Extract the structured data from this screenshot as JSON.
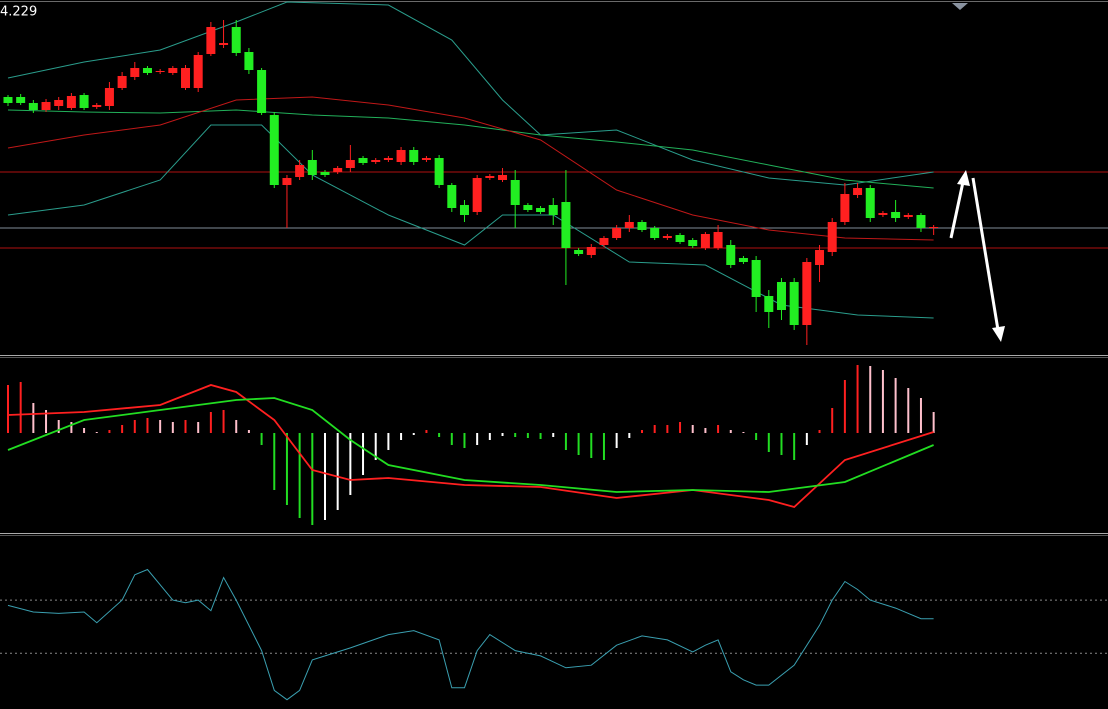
{
  "chart_data": [
    {
      "type": "candlestick",
      "price_label": "4.229",
      "xlim": [
        -0.63,
        86.75
      ],
      "ylim": [
        4.0,
        4.355
      ],
      "up_color": "#ff2020",
      "down_color": "#22ee22",
      "open": [
        4.258,
        4.258,
        4.252,
        4.245,
        4.249,
        4.247,
        4.26,
        4.248,
        4.249,
        4.267,
        4.278,
        4.287,
        4.283,
        4.282,
        4.267,
        4.267,
        4.301,
        4.31,
        4.328,
        4.303,
        4.285,
        4.24,
        4.17,
        4.178,
        4.195,
        4.183,
        4.183,
        4.187,
        4.197,
        4.193,
        4.195,
        4.193,
        4.205,
        4.195,
        4.197,
        4.17,
        4.15,
        4.143,
        4.177,
        4.175,
        4.175,
        4.15,
        4.147,
        4.15,
        4.153,
        4.105,
        4.1,
        4.11,
        4.117,
        4.127,
        4.133,
        4.127,
        4.117,
        4.12,
        4.115,
        4.107,
        4.107,
        4.11,
        4.097,
        4.095,
        4.059,
        4.073,
        4.073,
        4.03,
        4.09,
        4.103,
        4.133,
        4.16,
        4.167,
        4.14,
        4.143,
        4.138,
        4.14,
        4.127
      ],
      "high": [
        4.26,
        4.261,
        4.255,
        4.256,
        4.258,
        4.262,
        4.262,
        4.252,
        4.273,
        4.283,
        4.293,
        4.289,
        4.286,
        4.289,
        4.29,
        4.303,
        4.333,
        4.335,
        4.335,
        4.307,
        4.287,
        4.243,
        4.18,
        4.195,
        4.205,
        4.185,
        4.189,
        4.21,
        4.199,
        4.197,
        4.199,
        4.208,
        4.208,
        4.199,
        4.2,
        4.172,
        4.155,
        4.18,
        4.181,
        4.187,
        4.185,
        4.152,
        4.149,
        4.157,
        4.185,
        4.107,
        4.111,
        4.119,
        4.13,
        4.14,
        4.135,
        4.129,
        4.121,
        4.122,
        4.117,
        4.123,
        4.13,
        4.115,
        4.099,
        4.099,
        4.065,
        4.077,
        4.077,
        4.097,
        4.11,
        4.137,
        4.172,
        4.172,
        4.17,
        4.144,
        4.155,
        4.142,
        4.142,
        4.13
      ],
      "low": [
        4.249,
        4.25,
        4.242,
        4.243,
        4.245,
        4.245,
        4.245,
        4.246,
        4.245,
        4.265,
        4.275,
        4.28,
        4.281,
        4.28,
        4.265,
        4.263,
        4.299,
        4.307,
        4.299,
        4.281,
        4.24,
        4.167,
        4.127,
        4.175,
        4.175,
        4.178,
        4.181,
        4.183,
        4.19,
        4.191,
        4.193,
        4.19,
        4.19,
        4.193,
        4.167,
        4.143,
        4.133,
        4.14,
        4.175,
        4.173,
        4.127,
        4.143,
        4.141,
        4.13,
        4.07,
        4.099,
        4.097,
        4.108,
        4.115,
        4.123,
        4.123,
        4.115,
        4.115,
        4.111,
        4.107,
        4.105,
        4.105,
        4.087,
        4.091,
        4.043,
        4.027,
        4.035,
        4.025,
        4.01,
        4.073,
        4.099,
        4.13,
        4.157,
        4.133,
        4.138,
        4.133,
        4.136,
        4.123,
        4.12
      ],
      "close": [
        4.252,
        4.252,
        4.245,
        4.253,
        4.255,
        4.259,
        4.247,
        4.25,
        4.267,
        4.279,
        4.287,
        4.282,
        4.284,
        4.287,
        4.287,
        4.3,
        4.328,
        4.312,
        4.302,
        4.285,
        4.242,
        4.17,
        4.177,
        4.19,
        4.18,
        4.18,
        4.187,
        4.195,
        4.192,
        4.195,
        4.197,
        4.205,
        4.193,
        4.197,
        4.17,
        4.147,
        4.14,
        4.177,
        4.179,
        4.18,
        4.15,
        4.145,
        4.143,
        4.14,
        4.107,
        4.101,
        4.108,
        4.117,
        4.127,
        4.133,
        4.125,
        4.117,
        4.119,
        4.113,
        4.109,
        4.121,
        4.123,
        4.09,
        4.093,
        4.058,
        4.043,
        4.045,
        4.03,
        4.093,
        4.105,
        4.133,
        4.161,
        4.167,
        4.137,
        4.142,
        4.137,
        4.14,
        4.127,
        4.128
      ],
      "overlays": [
        {
          "color": "#2a9d8c",
          "x": [
            0,
            6,
            12,
            18,
            22,
            30,
            35,
            39,
            42,
            48,
            54,
            60,
            66,
            73
          ],
          "values": [
            4.277,
            4.293,
            4.305,
            4.333,
            4.353,
            4.35,
            4.315,
            4.255,
            4.22,
            4.225,
            4.195,
            4.177,
            4.17,
            4.183
          ]
        },
        {
          "color": "#22b05a",
          "x": [
            0,
            6,
            12,
            18,
            24,
            30,
            36,
            42,
            48,
            54,
            60,
            66,
            73
          ],
          "values": [
            4.245,
            4.243,
            4.242,
            4.245,
            4.24,
            4.237,
            4.23,
            4.22,
            4.213,
            4.205,
            4.19,
            4.175,
            4.167
          ]
        },
        {
          "color": "#c01818",
          "x": [
            0,
            6,
            12,
            18,
            24,
            30,
            36,
            42,
            48,
            54,
            60,
            66,
            73
          ],
          "values": [
            4.207,
            4.22,
            4.23,
            4.255,
            4.258,
            4.25,
            4.237,
            4.215,
            4.165,
            4.14,
            4.125,
            4.117,
            4.115
          ]
        },
        {
          "color": "#2a9d8c",
          "x": [
            0,
            6,
            12,
            16,
            20,
            24,
            30,
            36,
            39,
            43,
            49,
            55,
            61,
            67,
            73
          ],
          "values": [
            4.14,
            4.15,
            4.175,
            4.23,
            4.23,
            4.18,
            4.14,
            4.11,
            4.14,
            4.14,
            4.093,
            4.09,
            4.05,
            4.04,
            4.037
          ]
        }
      ],
      "hlines": [
        {
          "value": 4.183,
          "color": "#b01010"
        },
        {
          "value": 4.127,
          "color": "#7f8c99"
        },
        {
          "value": 4.107,
          "color": "#b01010"
        }
      ]
    },
    {
      "type": "macd",
      "xlim": [
        -0.63,
        86.75
      ],
      "ylim": [
        -0.1,
        0.076
      ],
      "values": [
        0.048,
        0.051,
        0.03,
        0.023,
        0.013,
        0.011,
        0.005,
        0.001,
        0.003,
        0.008,
        0.013,
        0.015,
        0.013,
        0.011,
        0.013,
        0.011,
        0.021,
        0.023,
        0.013,
        0.003,
        -0.012,
        -0.057,
        -0.072,
        -0.085,
        -0.092,
        -0.087,
        -0.077,
        -0.062,
        -0.042,
        -0.027,
        -0.017,
        -0.007,
        -0.002,
        0.003,
        -0.004,
        -0.012,
        -0.015,
        -0.012,
        -0.007,
        -0.003,
        -0.004,
        -0.005,
        -0.006,
        -0.004,
        -0.017,
        -0.022,
        -0.025,
        -0.027,
        -0.015,
        -0.005,
        0.003,
        0.008,
        0.008,
        0.011,
        0.008,
        0.005,
        0.008,
        0.003,
        0.001,
        -0.007,
        -0.019,
        -0.022,
        -0.027,
        -0.012,
        0.003,
        0.025,
        0.053,
        0.068,
        0.067,
        0.063,
        0.055,
        0.045,
        0.035,
        0.021
      ],
      "bar_colors": {
        "up_rising": "#ff2020",
        "up_falling": "#ffc0cc",
        "down_falling": "#22dd22",
        "down_rising": "#ffffff"
      },
      "lines": [
        {
          "color": "#ff2020",
          "x": [
            0,
            6,
            12,
            16,
            18,
            21,
            24,
            27,
            30,
            36,
            42,
            48,
            54,
            60,
            62,
            66,
            73
          ],
          "values": [
            0.018,
            0.021,
            0.028,
            0.048,
            0.041,
            0.013,
            -0.037,
            -0.047,
            -0.045,
            -0.052,
            -0.054,
            -0.065,
            -0.057,
            -0.067,
            -0.074,
            -0.027,
            0.001
          ]
        },
        {
          "color": "#22dd22",
          "x": [
            0,
            6,
            12,
            18,
            21,
            24,
            27,
            30,
            36,
            42,
            48,
            54,
            60,
            66,
            73
          ],
          "values": [
            -0.017,
            0.013,
            0.023,
            0.033,
            0.035,
            0.023,
            -0.007,
            -0.032,
            -0.047,
            -0.052,
            -0.059,
            -0.057,
            -0.059,
            -0.049,
            -0.012
          ]
        }
      ]
    },
    {
      "type": "line",
      "xlim": [
        -0.63,
        86.75
      ],
      "ylim": [
        -12,
        119
      ],
      "color": "#3a9fb0",
      "levels": [
        70,
        30
      ],
      "x": [
        0,
        2,
        4,
        6,
        7,
        9,
        10,
        11,
        13,
        14,
        15,
        16,
        17,
        18,
        20,
        21,
        22,
        23,
        24,
        25,
        27,
        30,
        32,
        34,
        35,
        36,
        37,
        38,
        40,
        42,
        44,
        46,
        48,
        50,
        52,
        54,
        55,
        56,
        57,
        58,
        59,
        60,
        62,
        64,
        65,
        66,
        67,
        68,
        70,
        72,
        73
      ],
      "values": [
        66,
        61,
        60,
        61,
        53,
        70,
        89,
        93,
        70,
        68,
        70,
        62,
        87,
        70,
        32,
        2,
        -5,
        2,
        25,
        28,
        34,
        44,
        47,
        40,
        4,
        4,
        32,
        44,
        32,
        28,
        19,
        21,
        36,
        43,
        40,
        31,
        36,
        40,
        16,
        10,
        6,
        6,
        21,
        51,
        70,
        84,
        78,
        70,
        64,
        56,
        56
      ]
    }
  ]
}
